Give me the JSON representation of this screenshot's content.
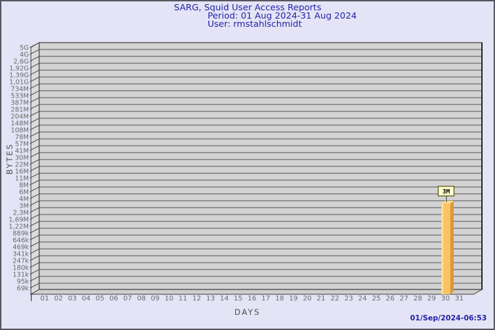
{
  "window": {
    "background": "#E4E4F6",
    "border_color": "#56565E"
  },
  "header": {
    "title": "SARG, Squid User Access Reports",
    "period": "Period: 01 Aug 2024-31 Aug 2024",
    "user": "User: rmstahlschmidt"
  },
  "footer": {
    "generated": "01/Sep/2024-06:53"
  },
  "chart_data": {
    "type": "bar",
    "title": "SARG, Squid User Access Reports",
    "subtitle": "Period: 01 Aug 2024-31 Aug 2024",
    "user": "rmstahlschmidt",
    "xlabel": "DAYS",
    "ylabel": "BYTES",
    "y_scale": "log",
    "grid": true,
    "x_categories": [
      "01",
      "02",
      "03",
      "04",
      "05",
      "06",
      "07",
      "08",
      "09",
      "10",
      "11",
      "12",
      "13",
      "14",
      "15",
      "16",
      "17",
      "18",
      "19",
      "20",
      "21",
      "22",
      "23",
      "24",
      "25",
      "26",
      "27",
      "28",
      "29",
      "30",
      "31"
    ],
    "y_tick_labels": [
      "5G",
      "4G",
      "2,6G",
      "1,92G",
      "1,39G",
      "1,01G",
      "734M",
      "533M",
      "387M",
      "281M",
      "204M",
      "148M",
      "108M",
      "78M",
      "57M",
      "41M",
      "30M",
      "22M",
      "16M",
      "11M",
      "8M",
      "6M",
      "4M",
      "3M",
      "2,3M",
      "1,69M",
      "1,22M",
      "889k",
      "646k",
      "469k",
      "341k",
      "247k",
      "180k",
      "131k",
      "95k",
      "69k"
    ],
    "values_bytes": [
      0,
      0,
      0,
      0,
      0,
      0,
      0,
      0,
      0,
      0,
      0,
      0,
      0,
      0,
      0,
      0,
      0,
      0,
      0,
      0,
      0,
      0,
      0,
      0,
      0,
      0,
      0,
      0,
      0,
      3000000,
      0
    ],
    "bars": [
      {
        "day": "30",
        "label": "3M",
        "value_bytes": 3000000,
        "y_tick_index": 23
      }
    ]
  },
  "colors": {
    "title_text": "#2222A6",
    "timestamp_text": "#2222A6",
    "axis_text": "#6A6A6A",
    "plot_bg": "#D3D3D3",
    "wall_bg": "#DCDCDC",
    "floor_bg": "#CFCFCF",
    "grid_line": "#555555",
    "plot_border": "#3C3C3C",
    "bar_front": "#FCC365",
    "bar_side": "#D89A3B",
    "bar_top": "#FFDA85",
    "bar_highlight": "#FFEFA8",
    "value_box_bg": "#FFFFCF",
    "value_box_border": "#5C5C20",
    "connector": "#444444"
  }
}
